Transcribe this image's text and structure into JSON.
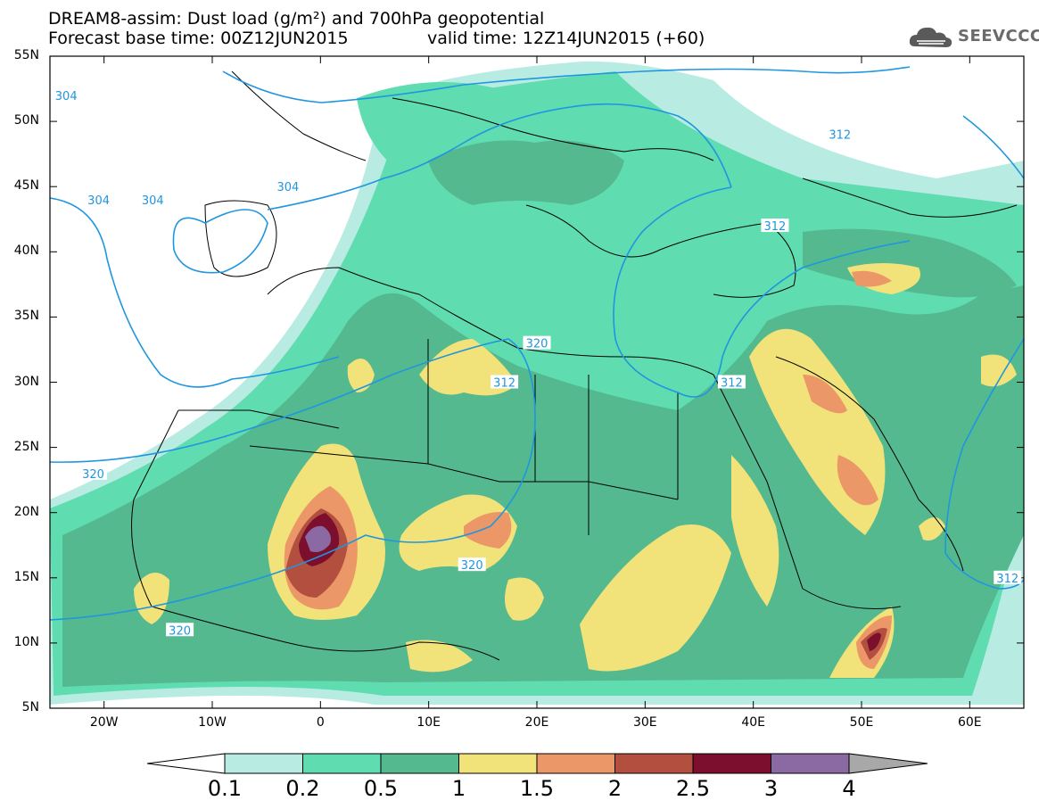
{
  "title": {
    "line1": "DREAM8-assim: Dust load (g/m²) and 700hPa geopotential",
    "line2": "Forecast base time: 00Z12JUN2015",
    "valid": "valid time: 12Z14JUN2015 (+60)"
  },
  "logo": {
    "text": "SEEVCCC",
    "icon": "cloud-icon"
  },
  "map": {
    "lon_range": [
      -25,
      65
    ],
    "lat_range": [
      5,
      55
    ],
    "lat_ticks": [
      {
        "label": "55N"
      },
      {
        "label": "50N"
      },
      {
        "label": "45N"
      },
      {
        "label": "40N"
      },
      {
        "label": "35N"
      },
      {
        "label": "30N"
      },
      {
        "label": "25N"
      },
      {
        "label": "20N"
      },
      {
        "label": "15N"
      },
      {
        "label": "10N"
      },
      {
        "label": "5N"
      }
    ],
    "lon_ticks": [
      {
        "label": "20W"
      },
      {
        "label": "10W"
      },
      {
        "label": "0"
      },
      {
        "label": "10E"
      },
      {
        "label": "20E"
      },
      {
        "label": "30E"
      },
      {
        "label": "40E"
      },
      {
        "label": "50E"
      },
      {
        "label": "60E"
      }
    ],
    "contour_labels": [
      {
        "text": "304"
      },
      {
        "text": "304"
      },
      {
        "text": "304"
      },
      {
        "text": "304"
      },
      {
        "text": "312"
      },
      {
        "text": "312"
      },
      {
        "text": "312"
      },
      {
        "text": "312"
      },
      {
        "text": "312"
      },
      {
        "text": "320"
      },
      {
        "text": "320"
      },
      {
        "text": "320"
      },
      {
        "text": "320"
      }
    ]
  },
  "colorbar": {
    "levels": [
      "0.1",
      "0.2",
      "0.5",
      "1",
      "1.5",
      "2",
      "2.5",
      "3",
      "4"
    ],
    "colors": [
      "#b8ece3",
      "#5fdcb0",
      "#55b98f",
      "#f1e27a",
      "#ec9768",
      "#b24f3f",
      "#7b0f2d",
      "#8b6aa3"
    ],
    "under_color": "#ffffff",
    "over_color": "#a8a8a8"
  }
}
